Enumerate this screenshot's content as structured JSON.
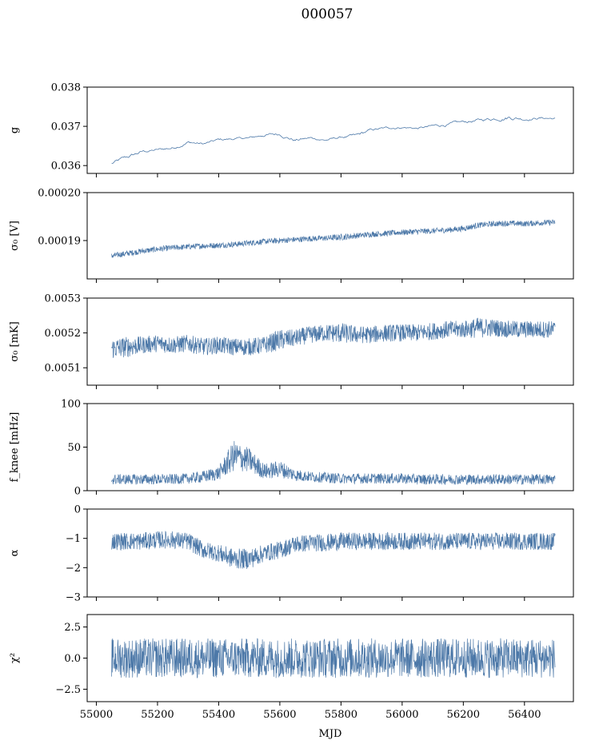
{
  "figure": {
    "title": "000057"
  },
  "colors": {
    "series": "#4c78a8"
  },
  "chart_data": [
    {
      "type": "line",
      "ylabel": "g",
      "ylim": [
        0.0358,
        0.038
      ],
      "yticks": [
        {
          "value": 0.036,
          "label": "0.036"
        },
        {
          "value": 0.037,
          "label": "0.037"
        },
        {
          "value": 0.038,
          "label": "0.038"
        }
      ],
      "series_style": "thin",
      "x": [
        55050,
        55100,
        55150,
        55200,
        55250,
        55300,
        55350,
        55400,
        55450,
        55500,
        55550,
        55600,
        55650,
        55700,
        55750,
        55800,
        55850,
        55900,
        55950,
        56000,
        56050,
        56100,
        56150,
        56200,
        56250,
        56300,
        56350,
        56400,
        56450,
        56500
      ],
      "y": [
        0.03605,
        0.0362,
        0.03635,
        0.0364,
        0.03645,
        0.0366,
        0.03655,
        0.03665,
        0.03668,
        0.0367,
        0.03678,
        0.0368,
        0.03665,
        0.0367,
        0.03665,
        0.03672,
        0.03675,
        0.0369,
        0.03695,
        0.03698,
        0.03695,
        0.037,
        0.03705,
        0.0371,
        0.03715,
        0.0372,
        0.03725,
        0.0372,
        0.03722,
        0.0372
      ],
      "band": [
        5e-05,
        5e-05,
        4e-05,
        3e-05,
        4e-05,
        4e-05,
        3e-05,
        4e-05,
        3e-05,
        3e-05,
        4e-05,
        4e-05,
        5e-05,
        3e-05,
        3e-05,
        3e-05,
        5e-05,
        4e-05,
        3e-05,
        3e-05,
        3e-05,
        4e-05,
        4e-05,
        4e-05,
        4e-05,
        5e-05,
        6e-05,
        4e-05,
        3e-05,
        3e-05
      ]
    },
    {
      "type": "line",
      "ylabel": "σ₀ [V]",
      "ylim": [
        0.000182,
        0.0002
      ],
      "yticks": [
        {
          "value": 0.00019,
          "label": "0.00019"
        },
        {
          "value": 0.0002,
          "label": "0.00020"
        }
      ],
      "series_style": "dense",
      "x": [
        55050,
        55100,
        55150,
        55200,
        55250,
        55300,
        55350,
        55400,
        55450,
        55500,
        55550,
        55600,
        55650,
        55700,
        55750,
        55800,
        55850,
        55900,
        55950,
        56000,
        56050,
        56100,
        56150,
        56200,
        56250,
        56300,
        56350,
        56400,
        56450,
        56500
      ],
      "y": [
        0.0001868,
        0.0001873,
        0.0001878,
        0.0001882,
        0.0001885,
        0.0001887,
        0.0001889,
        0.000189,
        0.0001892,
        0.0001895,
        0.0001898,
        0.00019,
        0.0001902,
        0.0001904,
        0.0001905,
        0.0001907,
        0.000191,
        0.0001913,
        0.0001915,
        0.0001917,
        0.0001919,
        0.000192,
        0.0001922,
        0.0001925,
        0.0001932,
        0.0001935,
        0.0001936,
        0.0001935,
        0.0001937,
        0.0001938
      ],
      "band": [
        6e-07,
        6e-07,
        6e-07,
        6e-07,
        6e-07,
        6e-07,
        6e-07,
        6e-07,
        6e-07,
        6e-07,
        6e-07,
        6e-07,
        6e-07,
        6e-07,
        6e-07,
        7e-07,
        6e-07,
        6e-07,
        6e-07,
        6e-07,
        6e-07,
        6e-07,
        6e-07,
        6e-07,
        6e-07,
        6e-07,
        6e-07,
        6e-07,
        6e-07,
        6e-07
      ]
    },
    {
      "type": "line",
      "ylabel": "σ₀ [mK]",
      "ylim": [
        0.00505,
        0.0053
      ],
      "yticks": [
        {
          "value": 0.0051,
          "label": "0.0051"
        },
        {
          "value": 0.0052,
          "label": "0.0052"
        },
        {
          "value": 0.0053,
          "label": "0.0053"
        }
      ],
      "series_style": "dense",
      "x": [
        55050,
        55100,
        55150,
        55200,
        55250,
        55300,
        55350,
        55400,
        55450,
        55500,
        55550,
        55600,
        55650,
        55700,
        55750,
        55800,
        55850,
        55900,
        55950,
        56000,
        56050,
        56100,
        56150,
        56200,
        56250,
        56300,
        56350,
        56400,
        56450,
        56500
      ],
      "y": [
        0.005155,
        0.00516,
        0.005165,
        0.00517,
        0.005165,
        0.00517,
        0.00516,
        0.005165,
        0.00516,
        0.00516,
        0.005165,
        0.00518,
        0.005185,
        0.005195,
        0.0052,
        0.0052,
        0.005195,
        0.005195,
        0.0052,
        0.0052,
        0.0052,
        0.005205,
        0.00521,
        0.00521,
        0.005215,
        0.005215,
        0.00521,
        0.00521,
        0.00521,
        0.00521
      ],
      "band": [
        3e-05,
        3e-05,
        2.5e-05,
        2.5e-05,
        2.5e-05,
        2.5e-05,
        2.5e-05,
        2.5e-05,
        2.5e-05,
        2.5e-05,
        2.5e-05,
        3e-05,
        2.5e-05,
        2.5e-05,
        2.5e-05,
        3e-05,
        2.5e-05,
        2.5e-05,
        2.5e-05,
        2.5e-05,
        2.5e-05,
        2.5e-05,
        2.5e-05,
        2.5e-05,
        3e-05,
        2.5e-05,
        2.5e-05,
        2.5e-05,
        2.5e-05,
        2.5e-05
      ]
    },
    {
      "type": "line",
      "ylabel": "f_knee [mHz]",
      "ylim": [
        0,
        100
      ],
      "yticks": [
        {
          "value": 0,
          "label": "0"
        },
        {
          "value": 50,
          "label": "50"
        },
        {
          "value": 100,
          "label": "100"
        }
      ],
      "series_style": "dense",
      "x": [
        55050,
        55100,
        55150,
        55200,
        55250,
        55300,
        55350,
        55400,
        55450,
        55500,
        55550,
        55600,
        55650,
        55700,
        55750,
        55800,
        55850,
        55900,
        55950,
        56000,
        56050,
        56100,
        56150,
        56200,
        56250,
        56300,
        56350,
        56400,
        56450,
        56500
      ],
      "y": [
        13,
        13,
        13,
        13,
        13,
        14,
        16,
        20,
        40,
        35,
        22,
        25,
        18,
        16,
        15,
        14,
        14,
        14,
        14,
        14,
        13,
        13,
        13,
        13,
        13,
        13,
        13,
        13,
        13,
        13
      ],
      "band": [
        6,
        6,
        6,
        6,
        6,
        6,
        7,
        8,
        18,
        14,
        9,
        10,
        7,
        6,
        6,
        6,
        6,
        6,
        6,
        6,
        6,
        6,
        6,
        6,
        6,
        6,
        6,
        6,
        6,
        6
      ]
    },
    {
      "type": "line",
      "ylabel": "α",
      "ylim": [
        -3,
        0
      ],
      "yticks": [
        {
          "value": -3,
          "label": "−3"
        },
        {
          "value": -2,
          "label": "−2"
        },
        {
          "value": -1,
          "label": "−1"
        },
        {
          "value": 0,
          "label": "0"
        }
      ],
      "series_style": "dense",
      "x": [
        55050,
        55100,
        55150,
        55200,
        55250,
        55300,
        55350,
        55400,
        55450,
        55500,
        55550,
        55600,
        55650,
        55700,
        55750,
        55800,
        55850,
        55900,
        55950,
        56000,
        56050,
        56100,
        56150,
        56200,
        56250,
        56300,
        56350,
        56400,
        56450,
        56500
      ],
      "y": [
        -1.1,
        -1.1,
        -1.1,
        -1.05,
        -1.05,
        -1.1,
        -1.4,
        -1.5,
        -1.7,
        -1.7,
        -1.5,
        -1.4,
        -1.2,
        -1.15,
        -1.15,
        -1.1,
        -1.1,
        -1.1,
        -1.1,
        -1.1,
        -1.1,
        -1.1,
        -1.1,
        -1.1,
        -1.1,
        -1.1,
        -1.1,
        -1.1,
        -1.1,
        -1.1
      ],
      "band": [
        0.3,
        0.3,
        0.3,
        0.3,
        0.3,
        0.3,
        0.3,
        0.3,
        0.35,
        0.35,
        0.3,
        0.3,
        0.3,
        0.3,
        0.3,
        0.3,
        0.3,
        0.3,
        0.3,
        0.3,
        0.3,
        0.3,
        0.3,
        0.3,
        0.3,
        0.3,
        0.3,
        0.3,
        0.3,
        0.3
      ]
    },
    {
      "type": "line",
      "ylabel": "χ²",
      "ylim": [
        -3.5,
        3.5
      ],
      "yticks": [
        {
          "value": -2.5,
          "label": "−2.5"
        },
        {
          "value": 0,
          "label": "0.0"
        },
        {
          "value": 2.5,
          "label": "2.5"
        }
      ],
      "series_style": "dense",
      "x": [
        55050,
        55100,
        55150,
        55200,
        55250,
        55300,
        55350,
        55400,
        55450,
        55500,
        55550,
        55600,
        55650,
        55700,
        55750,
        55800,
        55850,
        55900,
        55950,
        56000,
        56050,
        56100,
        56150,
        56200,
        56250,
        56300,
        56350,
        56400,
        56450,
        56500
      ],
      "y": [
        0,
        0,
        0,
        0,
        0,
        0,
        0,
        0,
        0,
        0,
        0,
        0,
        0,
        0,
        0,
        0,
        0,
        0,
        0,
        0,
        0,
        0,
        0,
        0,
        0,
        0,
        0,
        0,
        0,
        0
      ],
      "band": [
        1.6,
        1.6,
        1.6,
        1.6,
        1.6,
        1.6,
        1.6,
        1.6,
        1.6,
        1.6,
        1.6,
        1.6,
        1.6,
        1.6,
        1.6,
        1.6,
        1.6,
        1.6,
        1.6,
        1.6,
        1.6,
        1.6,
        1.6,
        1.6,
        1.6,
        1.6,
        1.6,
        1.6,
        1.6,
        1.6
      ]
    }
  ],
  "xaxis": {
    "label": "MJD",
    "xlim": [
      54970,
      56560
    ],
    "ticks": [
      55000,
      55200,
      55400,
      55600,
      55800,
      56000,
      56200,
      56400
    ]
  }
}
